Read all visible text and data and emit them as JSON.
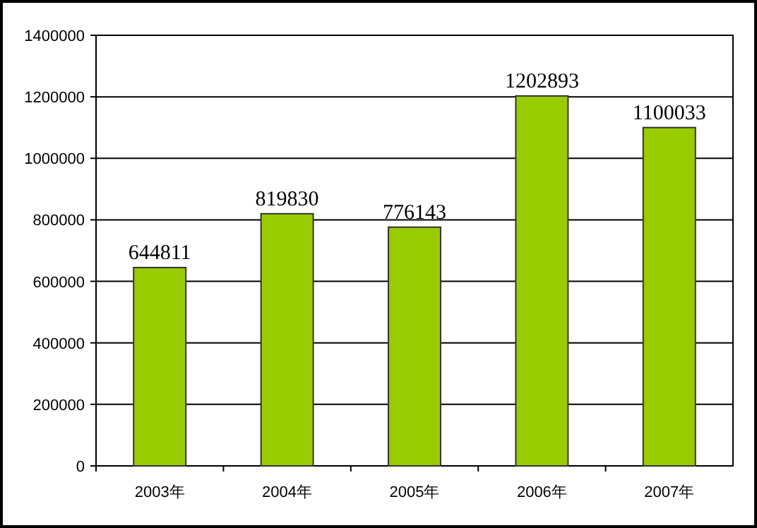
{
  "chart_data": {
    "type": "bar",
    "categories": [
      "2003年",
      "2004年",
      "2005年",
      "2006年",
      "2007年"
    ],
    "values": [
      644811,
      819830,
      776143,
      1202893,
      1100033
    ],
    "color": "#99cc00",
    "ylim": [
      0,
      1400000
    ],
    "yticks": [
      0,
      200000,
      400000,
      600000,
      800000,
      1000000,
      1200000,
      1400000
    ],
    "grid": "y",
    "data_labels": true
  }
}
